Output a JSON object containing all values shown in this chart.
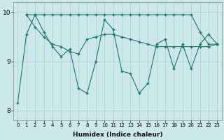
{
  "xlabel": "Humidex (Indice chaleur)",
  "xlim": [
    -0.5,
    23.5
  ],
  "ylim": [
    7.8,
    10.2
  ],
  "yticks": [
    8,
    9,
    10
  ],
  "xticks": [
    0,
    1,
    2,
    3,
    4,
    5,
    6,
    7,
    8,
    9,
    10,
    11,
    12,
    13,
    14,
    15,
    16,
    17,
    18,
    19,
    20,
    21,
    22,
    23
  ],
  "bg_color": "#cce8e8",
  "line_color": "#1a7a6e",
  "grid_color": "#aacfcf",
  "line1_x": [
    0,
    1,
    2,
    3,
    4,
    5,
    6,
    7,
    8,
    9,
    10,
    11,
    12,
    13,
    14,
    15,
    16,
    17,
    18,
    19,
    20,
    21,
    22,
    23
  ],
  "line1_y": [
    8.15,
    9.55,
    9.95,
    9.6,
    9.3,
    9.1,
    9.25,
    8.45,
    8.35,
    9.0,
    9.85,
    9.65,
    8.8,
    8.75,
    8.35,
    8.55,
    9.35,
    9.45,
    8.85,
    9.35,
    8.85,
    9.35,
    9.55,
    9.35
  ],
  "line2_x": [
    1,
    2,
    3,
    4,
    5,
    6,
    7,
    8,
    9,
    10,
    11,
    12,
    13,
    14,
    15,
    16,
    17,
    18,
    19,
    20,
    21,
    22,
    23
  ],
  "line2_y": [
    9.95,
    9.95,
    9.95,
    9.95,
    9.95,
    9.95,
    9.95,
    9.95,
    9.95,
    9.95,
    9.95,
    9.95,
    9.95,
    9.95,
    9.95,
    9.95,
    9.95,
    9.95,
    9.95,
    9.95,
    9.6,
    9.35,
    9.35
  ],
  "line3_x": [
    1,
    2,
    3,
    4,
    5,
    6,
    7,
    8,
    9,
    10,
    11,
    12,
    13,
    14,
    15,
    16,
    17,
    18,
    19,
    20,
    21,
    22,
    23
  ],
  "line3_y": [
    9.95,
    9.7,
    9.5,
    9.35,
    9.3,
    9.2,
    9.15,
    9.45,
    9.5,
    9.55,
    9.55,
    9.5,
    9.45,
    9.4,
    9.35,
    9.3,
    9.3,
    9.3,
    9.3,
    9.3,
    9.3,
    9.3,
    9.35
  ]
}
